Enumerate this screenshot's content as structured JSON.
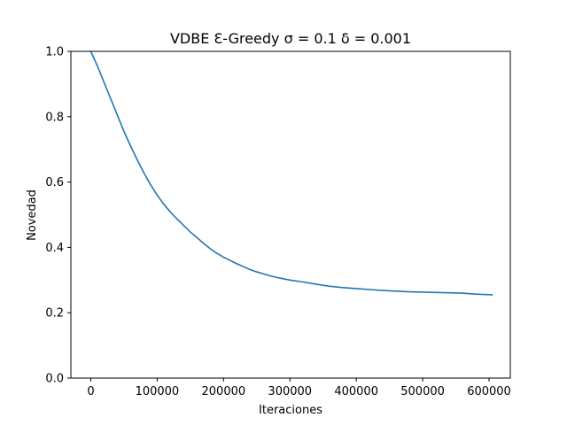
{
  "chart_data": {
    "type": "line",
    "title": "VDBE Ɛ-Greedy  σ = 0.1 δ = 0.001",
    "xlabel": "Iteraciones",
    "ylabel": "Novedad",
    "xlim": [
      -30000,
      632000
    ],
    "ylim": [
      0.0,
      1.0
    ],
    "xticks": [
      0,
      100000,
      200000,
      300000,
      400000,
      500000,
      600000
    ],
    "xtick_labels": [
      "0",
      "100000",
      "200000",
      "300000",
      "400000",
      "500000",
      "600000"
    ],
    "yticks": [
      0.0,
      0.2,
      0.4,
      0.6,
      0.8,
      1.0
    ],
    "ytick_labels": [
      "0.0",
      "0.2",
      "0.4",
      "0.6",
      "0.8",
      "1.0"
    ],
    "grid": false,
    "series": [
      {
        "color": "#1f77b4",
        "x": [
          0,
          10000,
          20000,
          30000,
          40000,
          50000,
          60000,
          70000,
          80000,
          90000,
          100000,
          110000,
          120000,
          130000,
          140000,
          150000,
          160000,
          170000,
          180000,
          190000,
          200000,
          210000,
          220000,
          230000,
          240000,
          250000,
          260000,
          270000,
          280000,
          290000,
          300000,
          320000,
          340000,
          360000,
          380000,
          400000,
          420000,
          440000,
          460000,
          480000,
          500000,
          520000,
          540000,
          560000,
          580000,
          605000
        ],
        "y": [
          1.0,
          0.955,
          0.905,
          0.855,
          0.805,
          0.755,
          0.71,
          0.668,
          0.628,
          0.592,
          0.56,
          0.532,
          0.508,
          0.487,
          0.467,
          0.447,
          0.43,
          0.412,
          0.396,
          0.382,
          0.37,
          0.36,
          0.35,
          0.341,
          0.332,
          0.325,
          0.319,
          0.313,
          0.308,
          0.304,
          0.3,
          0.294,
          0.287,
          0.281,
          0.277,
          0.274,
          0.271,
          0.268,
          0.266,
          0.264,
          0.263,
          0.262,
          0.261,
          0.26,
          0.257,
          0.255
        ]
      }
    ]
  }
}
